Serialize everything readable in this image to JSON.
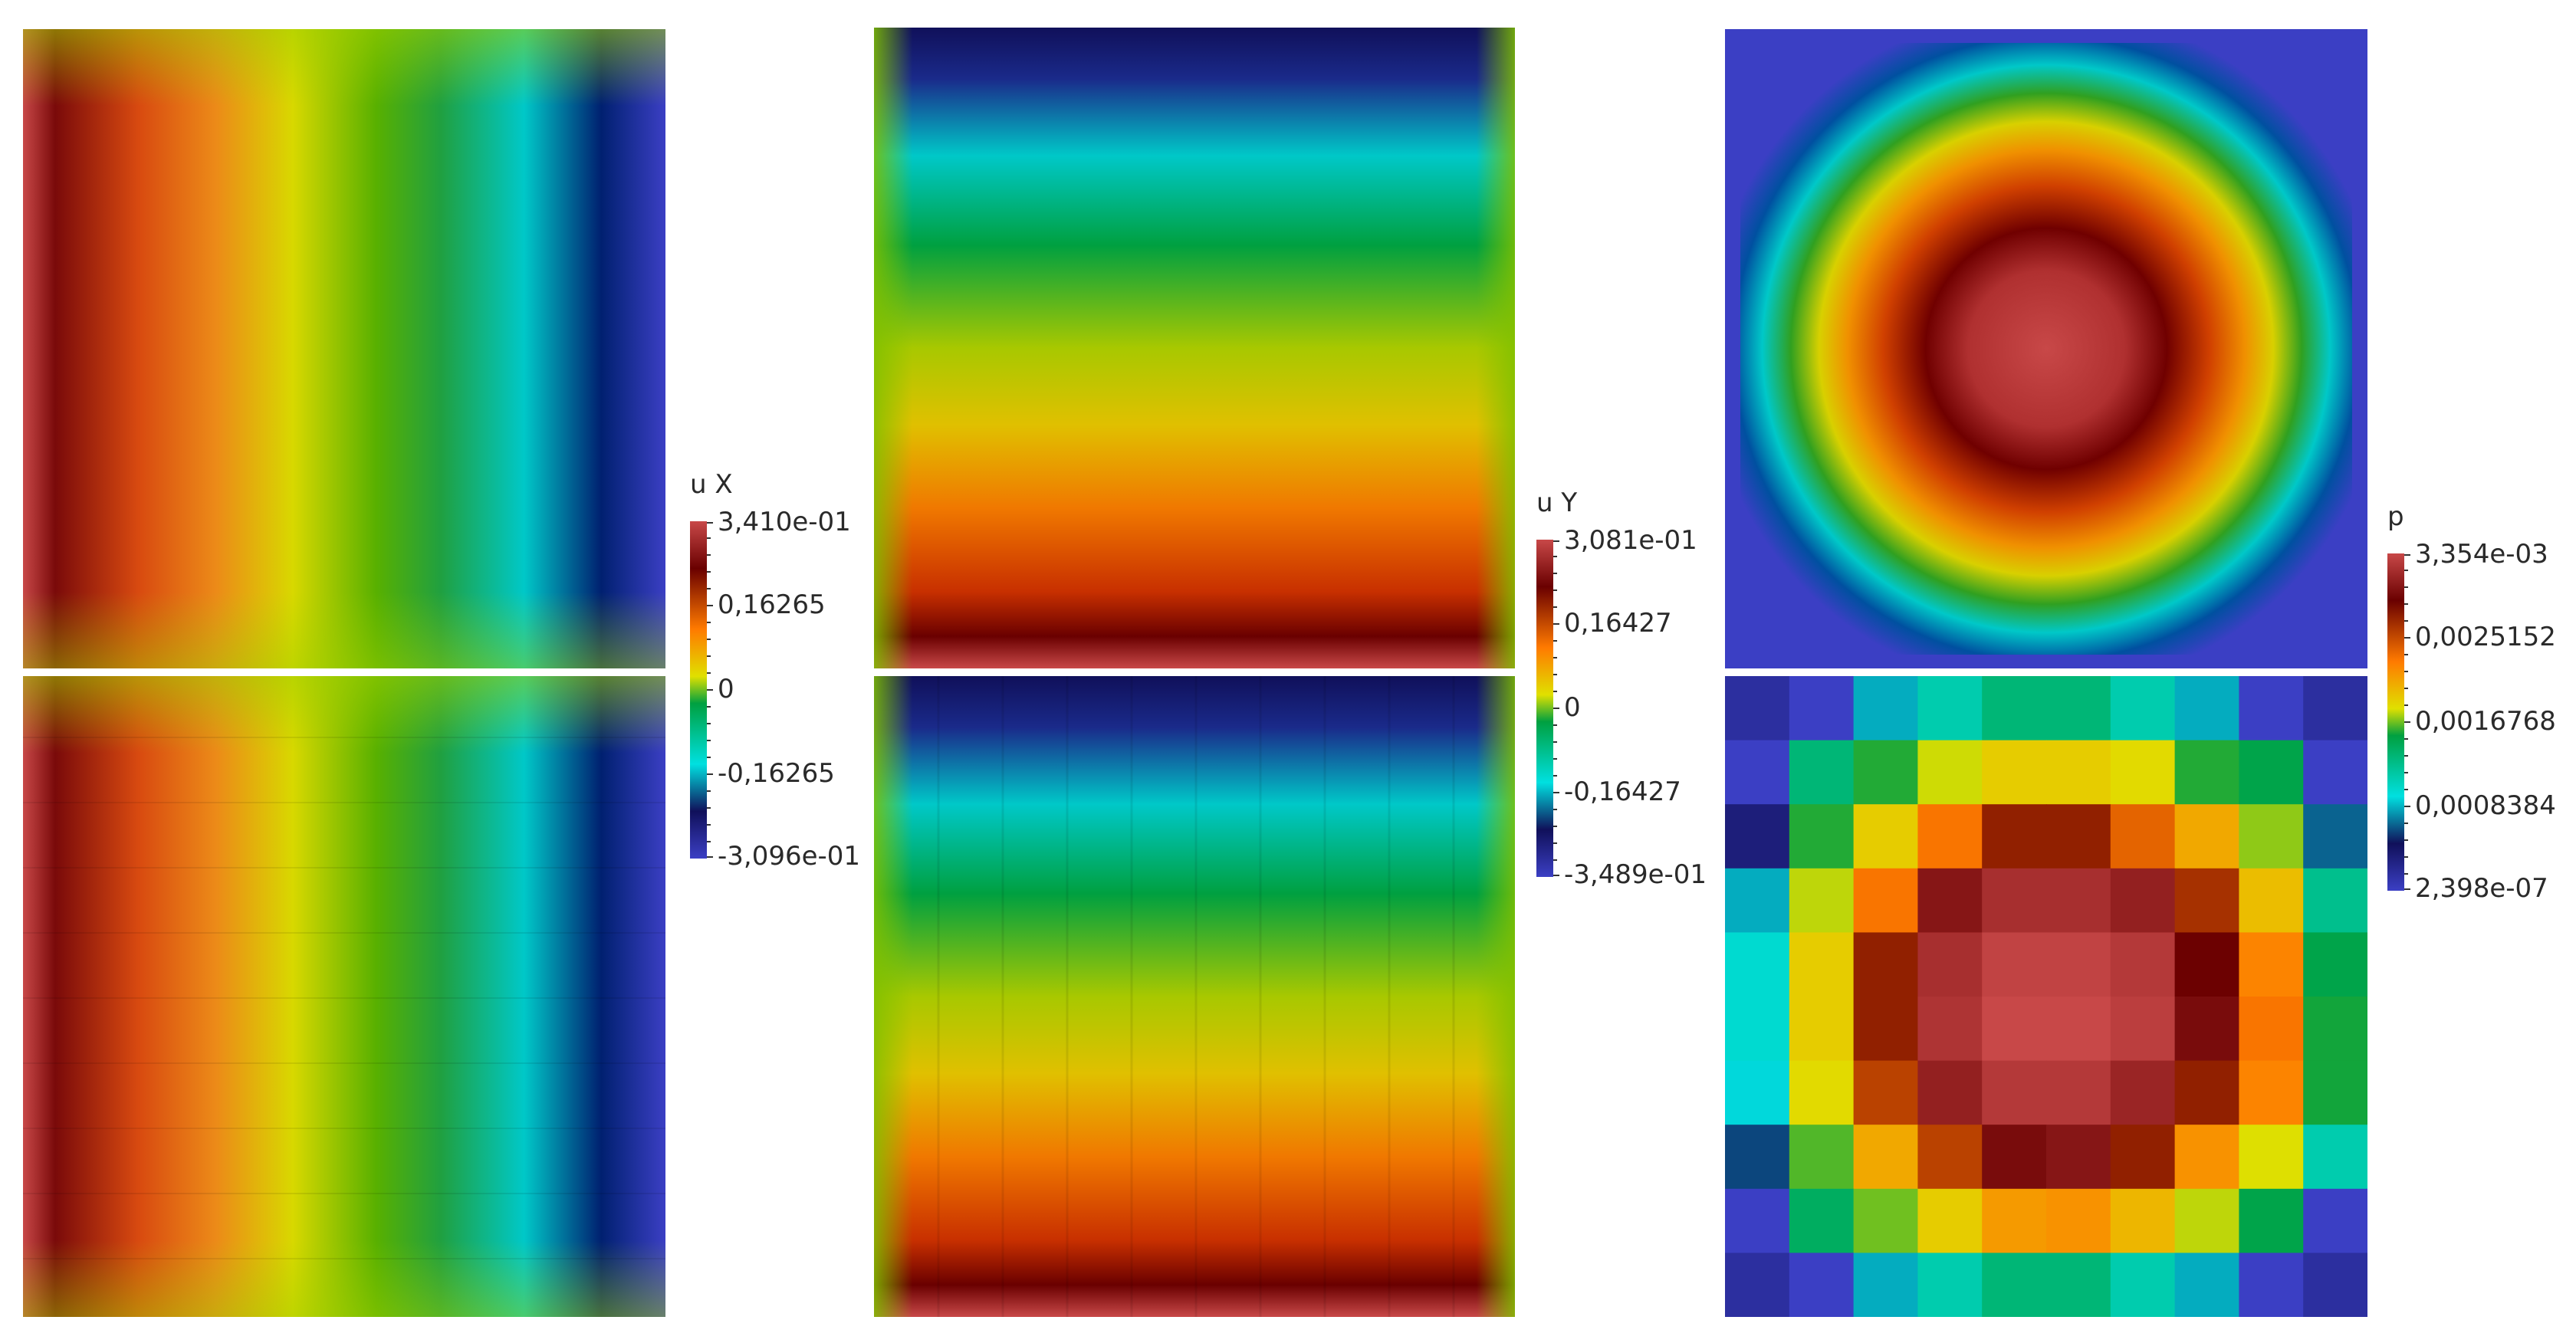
{
  "colorbars": [
    {
      "title": "u X",
      "labels": [
        "3,410e-01",
        "0,16265",
        "0",
        "-0,16265",
        "-3,096e-01"
      ]
    },
    {
      "title": "u Y",
      "labels": [
        "3,081e-01",
        "0,16427",
        "0",
        "-0,16427",
        "-3,489e-01"
      ]
    },
    {
      "title": "p",
      "labels": [
        "3,354e-03",
        "0,0025152",
        "0,0016768",
        "0,0008384",
        "2,398e-07"
      ]
    }
  ],
  "colormap": [
    "#3b3fc4",
    "#10105a",
    "#00e0e0",
    "#00a040",
    "#e0e000",
    "#ff7a00",
    "#6a0000",
    "#c84848"
  ],
  "pressure_grid": [
    [
      0.05,
      0.0,
      0.25,
      0.33,
      0.38,
      0.38,
      0.33,
      0.25,
      0.0,
      0.05
    ],
    [
      0.0,
      0.38,
      0.45,
      0.56,
      0.6,
      0.6,
      0.58,
      0.45,
      0.42,
      0.0
    ],
    [
      0.1,
      0.45,
      0.6,
      0.72,
      0.82,
      0.82,
      0.74,
      0.65,
      0.52,
      0.2
    ],
    [
      0.25,
      0.55,
      0.72,
      0.9,
      0.95,
      0.95,
      0.92,
      0.8,
      0.62,
      0.36
    ],
    [
      0.3,
      0.6,
      0.82,
      0.95,
      0.99,
      0.99,
      0.97,
      0.86,
      0.7,
      0.42
    ],
    [
      0.3,
      0.6,
      0.82,
      0.96,
      1.0,
      1.0,
      0.98,
      0.88,
      0.72,
      0.44
    ],
    [
      0.28,
      0.58,
      0.78,
      0.92,
      0.97,
      0.97,
      0.93,
      0.82,
      0.7,
      0.44
    ],
    [
      0.18,
      0.48,
      0.65,
      0.78,
      0.88,
      0.9,
      0.82,
      0.68,
      0.57,
      0.33
    ],
    [
      0.0,
      0.4,
      0.5,
      0.6,
      0.67,
      0.68,
      0.63,
      0.55,
      0.42,
      0.0
    ],
    [
      0.05,
      0.0,
      0.25,
      0.33,
      0.38,
      0.38,
      0.33,
      0.25,
      0.0,
      0.05
    ]
  ]
}
